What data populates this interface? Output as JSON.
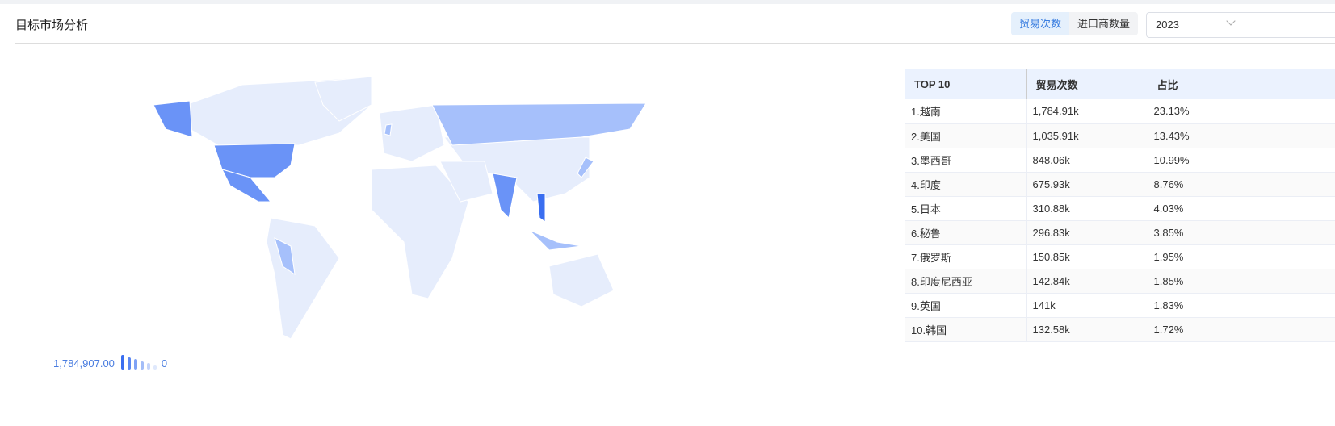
{
  "header": {
    "title": "目标市场分析",
    "tabs": [
      {
        "label": "贸易次数",
        "active": true
      },
      {
        "label": "进口商数量",
        "active": false
      }
    ],
    "year": "2023"
  },
  "table": {
    "headers": [
      "TOP 10",
      "贸易次数",
      "占比"
    ],
    "rows": [
      [
        "1.越南",
        "1,784.91k",
        "23.13%"
      ],
      [
        "2.美国",
        "1,035.91k",
        "13.43%"
      ],
      [
        "3.墨西哥",
        "848.06k",
        "10.99%"
      ],
      [
        "4.印度",
        "675.93k",
        "8.76%"
      ],
      [
        "5.日本",
        "310.88k",
        "4.03%"
      ],
      [
        "6.秘鲁",
        "296.83k",
        "3.85%"
      ],
      [
        "7.俄罗斯",
        "150.85k",
        "1.95%"
      ],
      [
        "8.印度尼西亚",
        "142.84k",
        "1.85%"
      ],
      [
        "9.英国",
        "141k",
        "1.83%"
      ],
      [
        "10.韩国",
        "132.58k",
        "1.72%"
      ]
    ]
  },
  "legend": {
    "max": "1,784,907.00",
    "min": "0",
    "colors": [
      "#3a6ef0",
      "#5b87f2",
      "#7fa2f5",
      "#a3bdf8",
      "#c4d4fa",
      "#dfe8fc"
    ]
  },
  "colors": {
    "base": "#e6edfc",
    "high": "#6a93f7",
    "mid": "#a6c0fb",
    "top": "#3a6ef0"
  }
}
